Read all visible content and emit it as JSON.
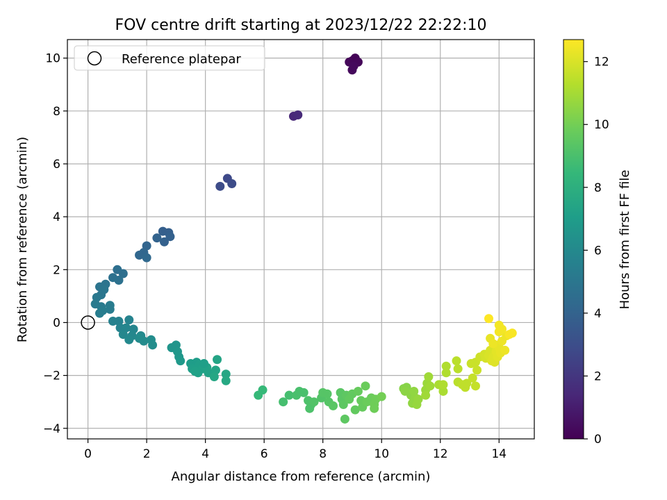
{
  "chart_data": {
    "type": "scatter",
    "title": "FOV centre drift starting at 2023/12/22 22:22:10",
    "xlabel": "Angular distance from reference (arcmin)",
    "ylabel": "Rotation from reference (arcmin)",
    "xlim": [
      -0.7,
      15.2
    ],
    "ylim": [
      -4.4,
      10.7
    ],
    "xticks": [
      0,
      2,
      4,
      6,
      8,
      10,
      12,
      14
    ],
    "yticks": [
      -4,
      -2,
      0,
      2,
      4,
      6,
      8,
      10
    ],
    "grid": true,
    "legend": {
      "position": "top-left",
      "entries": [
        "Reference platepar"
      ]
    },
    "reference_point": {
      "x": 0,
      "y": 0,
      "label": "Reference platepar"
    },
    "colorbar": {
      "label": "Hours from first FF file",
      "range": [
        0,
        12.7
      ],
      "ticks": [
        0,
        2,
        4,
        6,
        8,
        10,
        12
      ],
      "colormap": "viridis"
    },
    "series": [
      {
        "points": [
          {
            "x": 9.0,
            "y": 9.9,
            "h": 0.0
          },
          {
            "x": 9.1,
            "y": 10.0,
            "h": 0.1
          },
          {
            "x": 9.2,
            "y": 9.85,
            "h": 0.2
          },
          {
            "x": 8.9,
            "y": 9.85,
            "h": 0.2
          },
          {
            "x": 9.0,
            "y": 9.55,
            "h": 0.3
          },
          {
            "x": 9.05,
            "y": 9.7,
            "h": 0.3
          },
          {
            "x": 7.0,
            "y": 7.8,
            "h": 1.4
          },
          {
            "x": 7.15,
            "y": 7.85,
            "h": 1.5
          },
          {
            "x": 4.75,
            "y": 5.45,
            "h": 2.8
          },
          {
            "x": 4.5,
            "y": 5.15,
            "h": 2.9
          },
          {
            "x": 4.9,
            "y": 5.25,
            "h": 2.9
          },
          {
            "x": 2.55,
            "y": 3.45,
            "h": 3.8
          },
          {
            "x": 2.75,
            "y": 3.4,
            "h": 3.8
          },
          {
            "x": 2.8,
            "y": 3.25,
            "h": 3.9
          },
          {
            "x": 2.6,
            "y": 3.05,
            "h": 3.9
          },
          {
            "x": 2.35,
            "y": 3.2,
            "h": 4.0
          },
          {
            "x": 2.0,
            "y": 2.9,
            "h": 4.1
          },
          {
            "x": 1.9,
            "y": 2.65,
            "h": 4.2
          },
          {
            "x": 1.75,
            "y": 2.55,
            "h": 4.2
          },
          {
            "x": 2.0,
            "y": 2.45,
            "h": 4.3
          },
          {
            "x": 1.0,
            "y": 2.0,
            "h": 4.6
          },
          {
            "x": 1.2,
            "y": 1.85,
            "h": 4.6
          },
          {
            "x": 0.85,
            "y": 1.7,
            "h": 4.7
          },
          {
            "x": 1.05,
            "y": 1.6,
            "h": 4.7
          },
          {
            "x": 0.6,
            "y": 1.45,
            "h": 4.9
          },
          {
            "x": 0.4,
            "y": 1.35,
            "h": 4.9
          },
          {
            "x": 0.55,
            "y": 1.25,
            "h": 5.0
          },
          {
            "x": 0.45,
            "y": 1.05,
            "h": 5.0
          },
          {
            "x": 0.3,
            "y": 0.95,
            "h": 5.1
          },
          {
            "x": 0.25,
            "y": 0.7,
            "h": 5.2
          },
          {
            "x": 0.45,
            "y": 0.6,
            "h": 5.2
          },
          {
            "x": 0.75,
            "y": 0.65,
            "h": 5.3
          },
          {
            "x": 0.75,
            "y": 0.5,
            "h": 5.3
          },
          {
            "x": 0.5,
            "y": 0.45,
            "h": 5.4
          },
          {
            "x": 0.4,
            "y": 0.35,
            "h": 5.4
          },
          {
            "x": 0.85,
            "y": 0.05,
            "h": 5.6
          },
          {
            "x": 1.05,
            "y": 0.05,
            "h": 5.6
          },
          {
            "x": 1.1,
            "y": -0.2,
            "h": 5.7
          },
          {
            "x": 1.4,
            "y": 0.1,
            "h": 5.7
          },
          {
            "x": 1.3,
            "y": -0.2,
            "h": 5.8
          },
          {
            "x": 1.55,
            "y": -0.25,
            "h": 5.8
          },
          {
            "x": 1.2,
            "y": -0.45,
            "h": 5.9
          },
          {
            "x": 1.5,
            "y": -0.5,
            "h": 5.9
          },
          {
            "x": 1.4,
            "y": -0.65,
            "h": 6.0
          },
          {
            "x": 1.8,
            "y": -0.5,
            "h": 6.0
          },
          {
            "x": 1.9,
            "y": -0.7,
            "h": 6.1
          },
          {
            "x": 1.75,
            "y": -0.6,
            "h": 6.1
          },
          {
            "x": 2.15,
            "y": -0.65,
            "h": 6.2
          },
          {
            "x": 2.2,
            "y": -0.85,
            "h": 6.2
          },
          {
            "x": 2.85,
            "y": -0.95,
            "h": 6.6
          },
          {
            "x": 3.0,
            "y": -0.85,
            "h": 6.6
          },
          {
            "x": 3.05,
            "y": -1.1,
            "h": 6.7
          },
          {
            "x": 3.1,
            "y": -1.3,
            "h": 6.7
          },
          {
            "x": 3.15,
            "y": -1.45,
            "h": 6.8
          },
          {
            "x": 3.5,
            "y": -1.55,
            "h": 7.0
          },
          {
            "x": 3.7,
            "y": -1.5,
            "h": 7.0
          },
          {
            "x": 3.8,
            "y": -1.6,
            "h": 7.1
          },
          {
            "x": 3.55,
            "y": -1.75,
            "h": 7.1
          },
          {
            "x": 3.9,
            "y": -1.75,
            "h": 7.2
          },
          {
            "x": 3.75,
            "y": -1.9,
            "h": 7.2
          },
          {
            "x": 4.05,
            "y": -1.7,
            "h": 7.3
          },
          {
            "x": 4.1,
            "y": -1.9,
            "h": 7.3
          },
          {
            "x": 3.95,
            "y": -1.55,
            "h": 7.1
          },
          {
            "x": 3.65,
            "y": -1.85,
            "h": 7.2
          },
          {
            "x": 4.35,
            "y": -1.8,
            "h": 7.4
          },
          {
            "x": 4.4,
            "y": -1.4,
            "h": 7.4
          },
          {
            "x": 4.3,
            "y": -2.05,
            "h": 7.5
          },
          {
            "x": 4.7,
            "y": -1.95,
            "h": 7.5
          },
          {
            "x": 4.7,
            "y": -2.2,
            "h": 7.6
          },
          {
            "x": 5.8,
            "y": -2.75,
            "h": 8.5
          },
          {
            "x": 5.95,
            "y": -2.55,
            "h": 8.5
          },
          {
            "x": 6.65,
            "y": -3.0,
            "h": 8.9
          },
          {
            "x": 6.85,
            "y": -2.75,
            "h": 8.9
          },
          {
            "x": 7.1,
            "y": -2.75,
            "h": 9.0
          },
          {
            "x": 7.2,
            "y": -2.6,
            "h": 9.0
          },
          {
            "x": 7.35,
            "y": -2.65,
            "h": 9.0
          },
          {
            "x": 7.5,
            "y": -2.95,
            "h": 9.1
          },
          {
            "x": 7.6,
            "y": -3.1,
            "h": 9.1
          },
          {
            "x": 7.55,
            "y": -3.25,
            "h": 9.1
          },
          {
            "x": 7.7,
            "y": -3.0,
            "h": 9.2
          },
          {
            "x": 7.95,
            "y": -2.85,
            "h": 9.2
          },
          {
            "x": 8.0,
            "y": -2.65,
            "h": 9.3
          },
          {
            "x": 8.15,
            "y": -2.7,
            "h": 9.3
          },
          {
            "x": 8.2,
            "y": -3.0,
            "h": 9.3
          },
          {
            "x": 8.35,
            "y": -3.15,
            "h": 9.4
          },
          {
            "x": 8.6,
            "y": -2.65,
            "h": 9.4
          },
          {
            "x": 8.65,
            "y": -2.9,
            "h": 9.4
          },
          {
            "x": 8.7,
            "y": -3.1,
            "h": 9.5
          },
          {
            "x": 8.8,
            "y": -2.75,
            "h": 9.5
          },
          {
            "x": 8.75,
            "y": -3.65,
            "h": 9.5
          },
          {
            "x": 8.9,
            "y": -2.9,
            "h": 9.6
          },
          {
            "x": 9.0,
            "y": -2.7,
            "h": 9.6
          },
          {
            "x": 9.1,
            "y": -3.3,
            "h": 9.6
          },
          {
            "x": 9.2,
            "y": -2.6,
            "h": 9.7
          },
          {
            "x": 9.3,
            "y": -2.95,
            "h": 9.7
          },
          {
            "x": 9.35,
            "y": -3.2,
            "h": 9.7
          },
          {
            "x": 9.45,
            "y": -2.4,
            "h": 9.8
          },
          {
            "x": 9.5,
            "y": -3.0,
            "h": 9.8
          },
          {
            "x": 9.65,
            "y": -2.85,
            "h": 9.8
          },
          {
            "x": 9.75,
            "y": -3.1,
            "h": 9.9
          },
          {
            "x": 9.75,
            "y": -3.25,
            "h": 9.9
          },
          {
            "x": 9.8,
            "y": -2.9,
            "h": 9.9
          },
          {
            "x": 10.0,
            "y": -2.8,
            "h": 10.0
          },
          {
            "x": 10.75,
            "y": -2.5,
            "h": 10.4
          },
          {
            "x": 10.85,
            "y": -2.45,
            "h": 10.4
          },
          {
            "x": 10.8,
            "y": -2.6,
            "h": 10.5
          },
          {
            "x": 11.0,
            "y": -2.75,
            "h": 10.5
          },
          {
            "x": 11.05,
            "y": -3.05,
            "h": 10.6
          },
          {
            "x": 11.1,
            "y": -2.6,
            "h": 10.6
          },
          {
            "x": 11.15,
            "y": -2.85,
            "h": 10.6
          },
          {
            "x": 11.2,
            "y": -3.1,
            "h": 10.7
          },
          {
            "x": 11.25,
            "y": -2.9,
            "h": 10.7
          },
          {
            "x": 11.5,
            "y": -2.55,
            "h": 10.8
          },
          {
            "x": 11.55,
            "y": -2.3,
            "h": 10.8
          },
          {
            "x": 11.6,
            "y": -2.05,
            "h": 10.9
          },
          {
            "x": 11.5,
            "y": -2.75,
            "h": 10.9
          },
          {
            "x": 11.65,
            "y": -2.4,
            "h": 10.9
          },
          {
            "x": 11.95,
            "y": -2.35,
            "h": 11.1
          },
          {
            "x": 12.1,
            "y": -2.6,
            "h": 11.1
          },
          {
            "x": 12.1,
            "y": -2.35,
            "h": 11.2
          },
          {
            "x": 12.2,
            "y": -1.9,
            "h": 11.2
          },
          {
            "x": 12.2,
            "y": -1.65,
            "h": 11.2
          },
          {
            "x": 12.55,
            "y": -1.45,
            "h": 11.4
          },
          {
            "x": 12.6,
            "y": -1.75,
            "h": 11.4
          },
          {
            "x": 12.6,
            "y": -2.25,
            "h": 11.4
          },
          {
            "x": 12.75,
            "y": -2.35,
            "h": 11.5
          },
          {
            "x": 12.85,
            "y": -2.45,
            "h": 11.5
          },
          {
            "x": 12.9,
            "y": -2.3,
            "h": 11.5
          },
          {
            "x": 13.1,
            "y": -2.1,
            "h": 11.6
          },
          {
            "x": 13.2,
            "y": -2.4,
            "h": 11.6
          },
          {
            "x": 13.05,
            "y": -1.55,
            "h": 11.7
          },
          {
            "x": 13.2,
            "y": -1.5,
            "h": 11.7
          },
          {
            "x": 13.25,
            "y": -1.8,
            "h": 11.7
          },
          {
            "x": 13.35,
            "y": -1.3,
            "h": 11.8
          },
          {
            "x": 13.5,
            "y": -1.2,
            "h": 11.9
          },
          {
            "x": 13.55,
            "y": -1.35,
            "h": 11.9
          },
          {
            "x": 13.65,
            "y": -1.25,
            "h": 12.0
          },
          {
            "x": 13.7,
            "y": -1.05,
            "h": 12.0
          },
          {
            "x": 13.75,
            "y": -1.45,
            "h": 12.1
          },
          {
            "x": 13.8,
            "y": -1.3,
            "h": 12.1
          },
          {
            "x": 13.85,
            "y": -1.5,
            "h": 12.1
          },
          {
            "x": 13.9,
            "y": -1.1,
            "h": 12.2
          },
          {
            "x": 13.9,
            "y": -0.85,
            "h": 12.2
          },
          {
            "x": 13.95,
            "y": -1.3,
            "h": 12.2
          },
          {
            "x": 14.0,
            "y": -0.95,
            "h": 12.3
          },
          {
            "x": 14.05,
            "y": -1.15,
            "h": 12.3
          },
          {
            "x": 13.7,
            "y": -0.6,
            "h": 12.3
          },
          {
            "x": 14.2,
            "y": -1.05,
            "h": 12.4
          },
          {
            "x": 14.1,
            "y": -0.7,
            "h": 12.4
          },
          {
            "x": 14.25,
            "y": -0.5,
            "h": 12.4
          },
          {
            "x": 14.0,
            "y": -0.1,
            "h": 12.5
          },
          {
            "x": 14.1,
            "y": -0.25,
            "h": 12.5
          },
          {
            "x": 14.0,
            "y": -0.35,
            "h": 12.5
          },
          {
            "x": 14.35,
            "y": -0.45,
            "h": 12.6
          },
          {
            "x": 14.45,
            "y": -0.4,
            "h": 12.6
          },
          {
            "x": 13.8,
            "y": -0.8,
            "h": 12.4
          },
          {
            "x": 13.65,
            "y": 0.15,
            "h": 12.7
          }
        ]
      }
    ]
  }
}
